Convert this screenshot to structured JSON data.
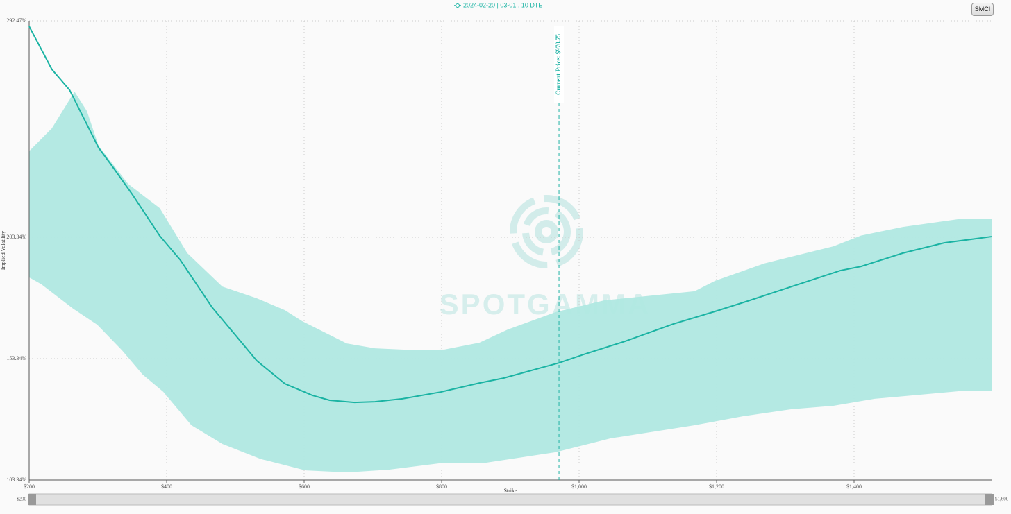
{
  "toolbar": {
    "button": "SMCI"
  },
  "chart_data": {
    "type": "line",
    "x_label": "Strike",
    "y_label": "Implied Volatility",
    "watermark": "SPOTGAMMA",
    "xlim": [
      200,
      1600
    ],
    "ylim": [
      103.34,
      292.47
    ],
    "xticks": [
      {
        "value": 200,
        "label": "$200"
      },
      {
        "value": 400,
        "label": "$400"
      },
      {
        "value": 600,
        "label": "$600"
      },
      {
        "value": 800,
        "label": "$800"
      },
      {
        "value": 1000,
        "label": "$1,000"
      },
      {
        "value": 1200,
        "label": "$1,200"
      },
      {
        "value": 1400,
        "label": "$1,400"
      }
    ],
    "yticks": [
      {
        "value": 103.34,
        "label": "103.34%"
      },
      {
        "value": 153.34,
        "label": "153.34%"
      },
      {
        "value": 203.34,
        "label": "203.34%"
      },
      {
        "value": 292.47,
        "label": "292.47%"
      }
    ],
    "grid": true,
    "range_slider": [
      {
        "value": 200,
        "label": "$200"
      },
      {
        "value": 1600,
        "label": "$1,600"
      }
    ],
    "annotation": {
      "text": "Current Price: $970.75",
      "x": 970.75,
      "color": "#20b2a4"
    },
    "series": [
      {
        "name": "2024-02-20 | 03-01 , 10 DTE",
        "color": "#1ab3a3",
        "x": [
          200,
          233,
          259,
          301,
          319,
          350,
          390,
          420,
          466,
          506,
          531,
          572,
          612,
          637,
          673,
          703,
          743,
          799,
          855,
          890,
          945,
          971,
          1006,
          1067,
          1137,
          1198,
          1248,
          1309,
          1380,
          1410,
          1471,
          1531,
          1600
        ],
        "values": [
          290.2,
          272.5,
          263.9,
          240.2,
          233.3,
          221.0,
          203.9,
          193.9,
          174.5,
          161.0,
          152.5,
          143.0,
          138.2,
          136.2,
          135.3,
          135.6,
          136.8,
          139.6,
          143.3,
          145.3,
          149.6,
          151.6,
          155.0,
          160.5,
          167.6,
          172.8,
          177.3,
          183.0,
          189.6,
          191.3,
          196.8,
          201.0,
          203.6
        ]
      }
    ],
    "band": {
      "color": "#b0e8e2",
      "upper": {
        "x": [
          200,
          233,
          266,
          284,
          301,
          344,
          390,
          430,
          481,
          531,
          572,
          597,
          662,
          703,
          764,
          804,
          855,
          896,
          966,
          1036,
          1168,
          1198,
          1269,
          1370,
          1410,
          1471,
          1552,
          1600
        ],
        "values": [
          238.8,
          248.2,
          263.3,
          255.3,
          241.0,
          225.3,
          215.3,
          196.8,
          183.0,
          178.2,
          173.3,
          168.8,
          159.6,
          157.6,
          156.8,
          157.1,
          159.9,
          165.3,
          172.5,
          177.3,
          181.1,
          185.4,
          192.5,
          199.6,
          204.0,
          207.6,
          210.8,
          210.8
        ]
      },
      "lower": {
        "x": [
          200,
          218,
          264,
          299,
          335,
          365,
          395,
          436,
          481,
          537,
          602,
          663,
          723,
          804,
          865,
          966,
          1046,
          1168,
          1238,
          1309,
          1370,
          1430,
          1552,
          1600
        ],
        "values": [
          186.8,
          183.9,
          173.9,
          167.3,
          156.8,
          146.8,
          139.7,
          125.9,
          118.2,
          112.0,
          107.3,
          106.5,
          107.6,
          110.5,
          110.5,
          114.8,
          120.5,
          125.9,
          129.6,
          132.5,
          133.9,
          136.8,
          139.9,
          139.9
        ]
      }
    }
  }
}
